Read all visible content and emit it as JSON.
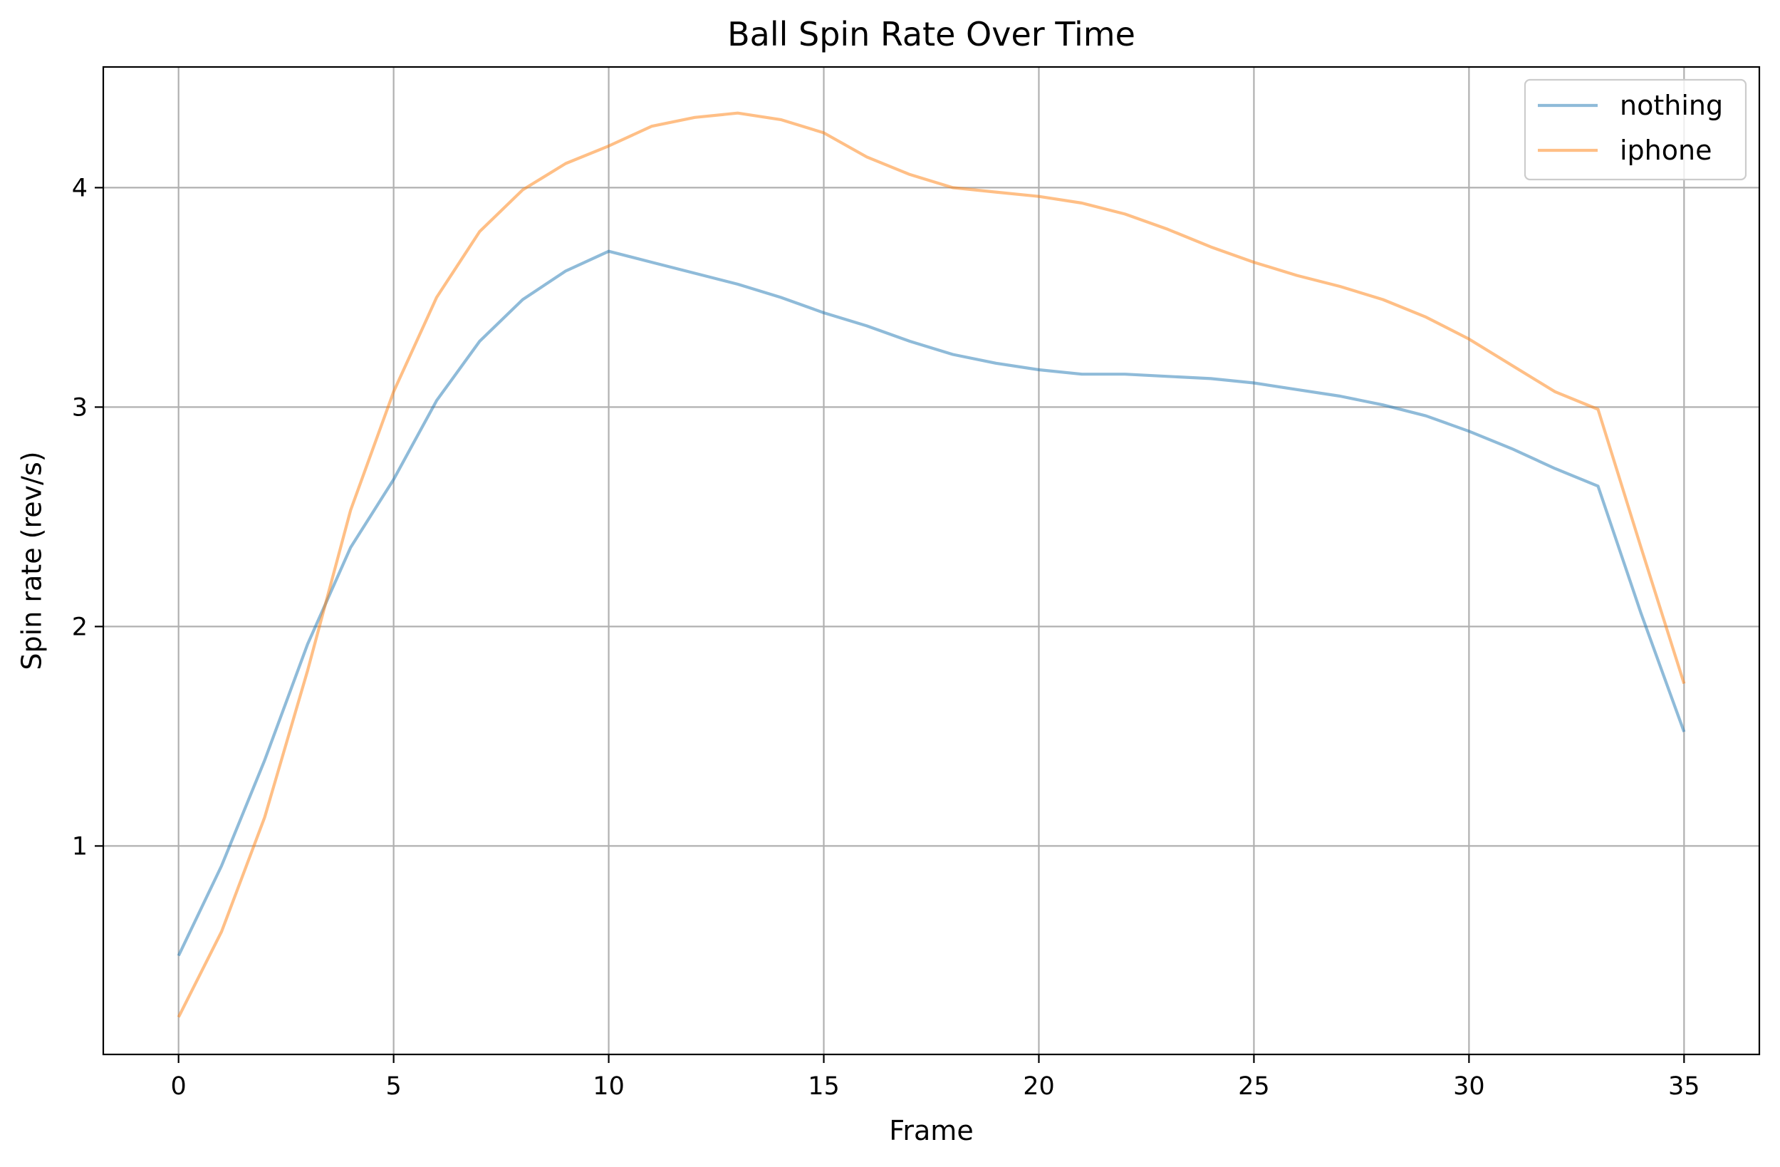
{
  "chart_data": {
    "type": "line",
    "title": "Ball Spin Rate Over Time",
    "xlabel": "Frame",
    "ylabel": "Spin rate (rev/s)",
    "xlim": [
      -1.75,
      36.75
    ],
    "ylim": [
      0.05,
      4.55
    ],
    "xticks": [
      0,
      5,
      10,
      15,
      20,
      25,
      30,
      35
    ],
    "yticks": [
      1,
      2,
      3,
      4
    ],
    "grid": true,
    "legend_position": "top-right",
    "x": [
      0,
      1,
      2,
      3,
      4,
      5,
      6,
      7,
      8,
      9,
      10,
      11,
      12,
      13,
      14,
      15,
      16,
      17,
      18,
      19,
      20,
      21,
      22,
      23,
      24,
      25,
      26,
      27,
      28,
      29,
      30,
      31,
      32,
      33,
      34,
      35
    ],
    "series": [
      {
        "name": "nothing",
        "color": "#1f77b4",
        "values": [
          0.5,
          0.91,
          1.39,
          1.92,
          2.36,
          2.67,
          3.03,
          3.3,
          3.49,
          3.62,
          3.71,
          3.66,
          3.61,
          3.56,
          3.5,
          3.43,
          3.37,
          3.3,
          3.24,
          3.2,
          3.17,
          3.15,
          3.15,
          3.14,
          3.13,
          3.11,
          3.08,
          3.05,
          3.01,
          2.96,
          2.89,
          2.81,
          2.72,
          2.64,
          2.06,
          1.52
        ]
      },
      {
        "name": "iphone",
        "color": "#ff7f0e",
        "values": [
          0.22,
          0.61,
          1.13,
          1.8,
          2.53,
          3.07,
          3.5,
          3.8,
          3.99,
          4.11,
          4.19,
          4.28,
          4.32,
          4.34,
          4.31,
          4.25,
          4.14,
          4.06,
          4.0,
          3.98,
          3.96,
          3.93,
          3.88,
          3.81,
          3.73,
          3.66,
          3.6,
          3.55,
          3.49,
          3.41,
          3.31,
          3.19,
          3.07,
          2.99,
          2.36,
          1.74
        ]
      }
    ]
  }
}
